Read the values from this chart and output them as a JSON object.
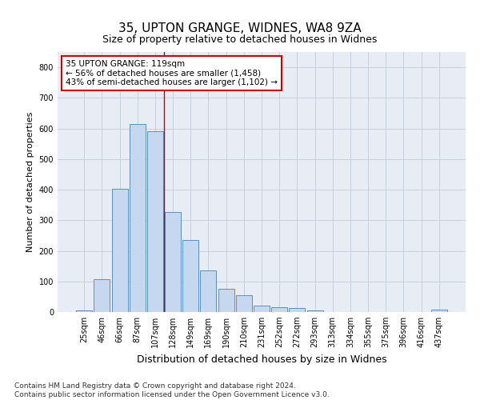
{
  "title": "35, UPTON GRANGE, WIDNES, WA8 9ZA",
  "subtitle": "Size of property relative to detached houses in Widnes",
  "xlabel": "Distribution of detached houses by size in Widnes",
  "ylabel": "Number of detached properties",
  "categories": [
    "25sqm",
    "46sqm",
    "66sqm",
    "87sqm",
    "107sqm",
    "128sqm",
    "149sqm",
    "169sqm",
    "190sqm",
    "210sqm",
    "231sqm",
    "252sqm",
    "272sqm",
    "293sqm",
    "313sqm",
    "334sqm",
    "355sqm",
    "375sqm",
    "396sqm",
    "416sqm",
    "437sqm"
  ],
  "values": [
    5,
    107,
    403,
    614,
    592,
    328,
    235,
    135,
    77,
    55,
    22,
    15,
    14,
    4,
    0,
    0,
    0,
    0,
    0,
    0,
    8
  ],
  "bar_color": "#c5d8f0",
  "bar_edge_color": "#5a8fc0",
  "annotation_line1": "35 UPTON GRANGE: 119sqm",
  "annotation_line2": "← 56% of detached houses are smaller (1,458)",
  "annotation_line3": "43% of semi-detached houses are larger (1,102) →",
  "annotation_box_color": "#ffffff",
  "annotation_box_edge": "#cc0000",
  "vline_x": 4.5,
  "vline_color": "#cc0000",
  "ylim": [
    0,
    850
  ],
  "yticks": [
    0,
    100,
    200,
    300,
    400,
    500,
    600,
    700,
    800
  ],
  "grid_color": "#c8d0dc",
  "bg_color": "#e8ecf4",
  "footer": "Contains HM Land Registry data © Crown copyright and database right 2024.\nContains public sector information licensed under the Open Government Licence v3.0.",
  "title_fontsize": 11,
  "subtitle_fontsize": 9,
  "ylabel_fontsize": 8,
  "xlabel_fontsize": 9,
  "tick_fontsize": 7,
  "annot_fontsize": 7.5,
  "footer_fontsize": 6.5
}
